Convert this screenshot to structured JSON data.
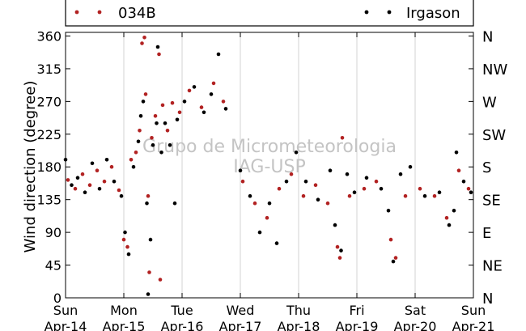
{
  "watermark": {
    "line1": "Grupo de Micrometeorologia",
    "line2": "IAG-USP"
  },
  "legend": {
    "entries": [
      {
        "label": "034B",
        "color": "#b22222"
      },
      {
        "label": "Irgason",
        "color": "#000000"
      }
    ],
    "placement": "top"
  },
  "chart_data": {
    "type": "scatter",
    "ylabel": "Wind direction (degree)",
    "xlabel": "",
    "ylim": [
      0,
      365
    ],
    "xlim": [
      "2019-04-14",
      "2019-04-21"
    ],
    "grid": "vertical",
    "y_ticks": [
      0,
      45,
      90,
      135,
      180,
      225,
      270,
      315,
      360
    ],
    "y_right_ticks": [
      {
        "value": 0,
        "label": "N"
      },
      {
        "value": 45,
        "label": "NE"
      },
      {
        "value": 90,
        "label": "E"
      },
      {
        "value": 135,
        "label": "SE"
      },
      {
        "value": 180,
        "label": "S"
      },
      {
        "value": 225,
        "label": "SW"
      },
      {
        "value": 270,
        "label": "W"
      },
      {
        "value": 315,
        "label": "NW"
      },
      {
        "value": 360,
        "label": "N"
      }
    ],
    "x_ticks": [
      {
        "date": "2019-04-14",
        "day": "Sun",
        "label": "Apr-14"
      },
      {
        "date": "2019-04-15",
        "day": "Mon",
        "label": "Apr-15"
      },
      {
        "date": "2019-04-16",
        "day": "Tue",
        "label": "Apr-16"
      },
      {
        "date": "2019-04-17",
        "day": "Wed",
        "label": "Apr-17"
      },
      {
        "date": "2019-04-18",
        "day": "Thu",
        "label": "Apr-18"
      },
      {
        "date": "2019-04-19",
        "day": "Fri",
        "label": "Apr-19"
      },
      {
        "date": "2019-04-20",
        "day": "Sat",
        "label": "Apr-20"
      },
      {
        "date": "2019-04-21",
        "day": "Sun",
        "label": "Apr-21"
      }
    ],
    "series": [
      {
        "name": "034B",
        "color": "#b22222",
        "points": [
          [
            "2019-04-14 01:00",
            162
          ],
          [
            "2019-04-14 04:00",
            150
          ],
          [
            "2019-04-14 07:00",
            170
          ],
          [
            "2019-04-14 10:00",
            155
          ],
          [
            "2019-04-14 13:00",
            175
          ],
          [
            "2019-04-14 16:00",
            160
          ],
          [
            "2019-04-14 19:00",
            180
          ],
          [
            "2019-04-14 22:00",
            148
          ],
          [
            "2019-04-15 00:00",
            80
          ],
          [
            "2019-04-15 01:30",
            70
          ],
          [
            "2019-04-15 03:00",
            190
          ],
          [
            "2019-04-15 05:00",
            200
          ],
          [
            "2019-04-15 06:30",
            230
          ],
          [
            "2019-04-15 07:30",
            350
          ],
          [
            "2019-04-15 08:30",
            358
          ],
          [
            "2019-04-15 09:00",
            280
          ],
          [
            "2019-04-15 10:00",
            140
          ],
          [
            "2019-04-15 10:30",
            35
          ],
          [
            "2019-04-15 11:30",
            220
          ],
          [
            "2019-04-15 13:00",
            250
          ],
          [
            "2019-04-15 14:30",
            335
          ],
          [
            "2019-04-15 15:00",
            25
          ],
          [
            "2019-04-15 16:00",
            265
          ],
          [
            "2019-04-15 18:00",
            230
          ],
          [
            "2019-04-15 20:00",
            268
          ],
          [
            "2019-04-15 23:00",
            255
          ],
          [
            "2019-04-16 03:00",
            285
          ],
          [
            "2019-04-16 08:00",
            262
          ],
          [
            "2019-04-16 13:00",
            295
          ],
          [
            "2019-04-16 17:00",
            270
          ],
          [
            "2019-04-17 01:00",
            160
          ],
          [
            "2019-04-17 06:00",
            130
          ],
          [
            "2019-04-17 11:00",
            110
          ],
          [
            "2019-04-17 16:00",
            150
          ],
          [
            "2019-04-17 21:00",
            170
          ],
          [
            "2019-04-18 02:00",
            140
          ],
          [
            "2019-04-18 07:00",
            155
          ],
          [
            "2019-04-18 12:00",
            130
          ],
          [
            "2019-04-18 16:00",
            70
          ],
          [
            "2019-04-18 17:00",
            55
          ],
          [
            "2019-04-18 18:00",
            220
          ],
          [
            "2019-04-18 21:00",
            140
          ],
          [
            "2019-04-19 03:00",
            150
          ],
          [
            "2019-04-19 08:00",
            160
          ],
          [
            "2019-04-19 14:00",
            80
          ],
          [
            "2019-04-19 16:00",
            55
          ],
          [
            "2019-04-19 20:00",
            140
          ],
          [
            "2019-04-20 02:00",
            150
          ],
          [
            "2019-04-20 08:00",
            140
          ],
          [
            "2019-04-20 13:00",
            110
          ],
          [
            "2019-04-20 18:00",
            175
          ],
          [
            "2019-04-20 22:00",
            150
          ]
        ]
      },
      {
        "name": "Irgason",
        "color": "#000000",
        "points": [
          [
            "2019-04-14 00:00",
            190
          ],
          [
            "2019-04-14 02:30",
            155
          ],
          [
            "2019-04-14 05:00",
            165
          ],
          [
            "2019-04-14 08:00",
            145
          ],
          [
            "2019-04-14 11:00",
            185
          ],
          [
            "2019-04-14 14:00",
            150
          ],
          [
            "2019-04-14 17:00",
            190
          ],
          [
            "2019-04-14 20:00",
            160
          ],
          [
            "2019-04-14 23:00",
            140
          ],
          [
            "2019-04-15 00:30",
            90
          ],
          [
            "2019-04-15 02:00",
            60
          ],
          [
            "2019-04-15 04:00",
            180
          ],
          [
            "2019-04-15 06:00",
            215
          ],
          [
            "2019-04-15 07:00",
            250
          ],
          [
            "2019-04-15 08:00",
            270
          ],
          [
            "2019-04-15 09:30",
            130
          ],
          [
            "2019-04-15 10:00",
            5
          ],
          [
            "2019-04-15 11:00",
            80
          ],
          [
            "2019-04-15 12:00",
            210
          ],
          [
            "2019-04-15 13:30",
            240
          ],
          [
            "2019-04-15 14:00",
            345
          ],
          [
            "2019-04-15 15:30",
            200
          ],
          [
            "2019-04-15 17:00",
            240
          ],
          [
            "2019-04-15 19:00",
            210
          ],
          [
            "2019-04-15 21:00",
            130
          ],
          [
            "2019-04-15 22:00",
            245
          ],
          [
            "2019-04-16 01:00",
            270
          ],
          [
            "2019-04-16 05:00",
            290
          ],
          [
            "2019-04-16 09:00",
            255
          ],
          [
            "2019-04-16 12:00",
            280
          ],
          [
            "2019-04-16 15:00",
            335
          ],
          [
            "2019-04-16 18:00",
            260
          ],
          [
            "2019-04-17 00:00",
            175
          ],
          [
            "2019-04-17 04:00",
            140
          ],
          [
            "2019-04-17 08:00",
            90
          ],
          [
            "2019-04-17 12:00",
            130
          ],
          [
            "2019-04-17 15:00",
            75
          ],
          [
            "2019-04-17 19:00",
            160
          ],
          [
            "2019-04-17 23:00",
            200
          ],
          [
            "2019-04-18 03:00",
            160
          ],
          [
            "2019-04-18 08:00",
            135
          ],
          [
            "2019-04-18 13:00",
            175
          ],
          [
            "2019-04-18 15:00",
            100
          ],
          [
            "2019-04-18 17:30",
            65
          ],
          [
            "2019-04-18 20:00",
            170
          ],
          [
            "2019-04-18 23:00",
            145
          ],
          [
            "2019-04-19 04:00",
            165
          ],
          [
            "2019-04-19 10:00",
            150
          ],
          [
            "2019-04-19 13:00",
            120
          ],
          [
            "2019-04-19 15:00",
            50
          ],
          [
            "2019-04-19 18:00",
            170
          ],
          [
            "2019-04-19 22:00",
            180
          ],
          [
            "2019-04-20 04:00",
            140
          ],
          [
            "2019-04-20 10:00",
            145
          ],
          [
            "2019-04-20 14:00",
            100
          ],
          [
            "2019-04-20 16:00",
            120
          ],
          [
            "2019-04-20 17:00",
            200
          ],
          [
            "2019-04-20 20:00",
            160
          ],
          [
            "2019-04-20 23:00",
            145
          ]
        ]
      }
    ]
  }
}
